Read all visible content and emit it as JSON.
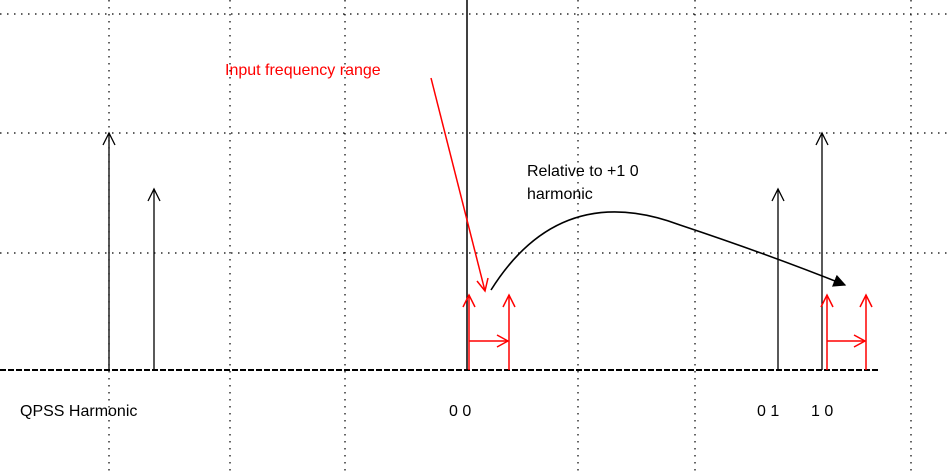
{
  "labels": {
    "input_range": "Input frequency range",
    "relative_line1": "Relative to +1 0",
    "relative_line2": "harmonic",
    "axis_name": "QPSS Harmonic",
    "tick_00": "0 0",
    "tick_01": "0 1",
    "tick_10": "1 0"
  },
  "colors": {
    "primary": "#000000",
    "highlight": "#ff0000",
    "grid": "#000000"
  }
}
